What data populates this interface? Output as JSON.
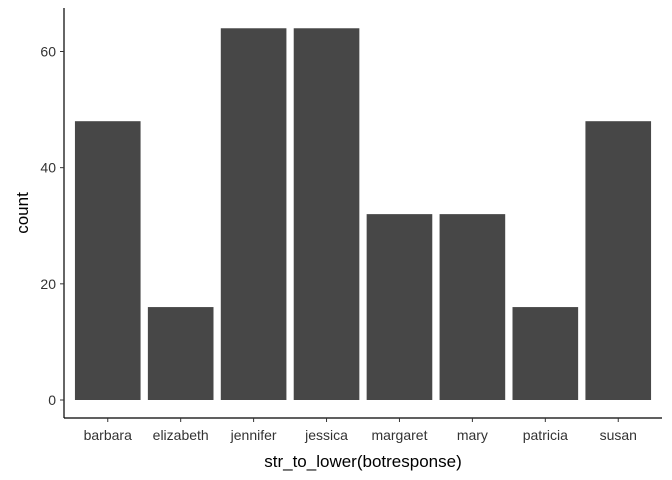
{
  "chart_data": {
    "type": "bar",
    "categories": [
      "barbara",
      "elizabeth",
      "jennifer",
      "jessica",
      "margaret",
      "mary",
      "patricia",
      "susan"
    ],
    "values": [
      48,
      16,
      64,
      64,
      32,
      32,
      16,
      48
    ],
    "xlabel": "str_to_lower(botresponse)",
    "ylabel": "count",
    "ylim": [
      0,
      67.2
    ],
    "yticks": [
      0,
      20,
      40,
      60
    ],
    "grid": false,
    "bar_color": "#474747"
  }
}
